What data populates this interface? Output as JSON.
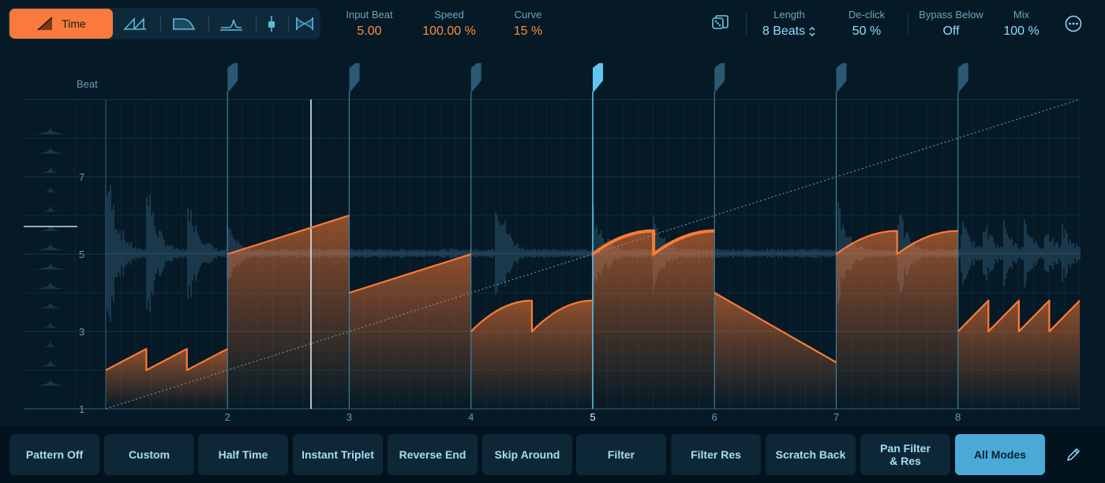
{
  "toolbar": {
    "modes": [
      {
        "id": "time",
        "label": "Time",
        "icon": "time-ramp-icon",
        "active": true
      },
      {
        "id": "repeat",
        "icon": "double-ramp-icon"
      },
      {
        "id": "fade",
        "icon": "fade-curve-icon"
      },
      {
        "id": "filter",
        "icon": "filter-peak-icon"
      },
      {
        "id": "level",
        "icon": "fader-icon"
      },
      {
        "id": "pan",
        "icon": "pan-bowtie-icon"
      }
    ]
  },
  "params": {
    "input_beat": {
      "label": "Input Beat",
      "value": "5.00"
    },
    "speed": {
      "label": "Speed",
      "value": "100.00 %"
    },
    "curve": {
      "label": "Curve",
      "value": "15 %"
    },
    "length": {
      "label": "Length",
      "value": "8 Beats"
    },
    "declick": {
      "label": "De-click",
      "value": "50 %"
    },
    "bypass_below": {
      "label": "Bypass Below",
      "value": "Off"
    },
    "mix": {
      "label": "Mix",
      "value": "100 %"
    }
  },
  "icons": {
    "randomize": "dice-icon",
    "more": "ellipsis-circle-icon",
    "length_stepper": "up-down-chevron-icon",
    "edit": "pencil-icon"
  },
  "graph": {
    "y_axis_title": "Beat",
    "y_ticks": [
      "1",
      "3",
      "5",
      "7"
    ],
    "x_ticks": [
      "2",
      "3",
      "4",
      "5",
      "6",
      "7",
      "8"
    ],
    "selected_beat": "5",
    "colors": {
      "accent": "#ff7a33",
      "marker": "#5fc7f2",
      "background": "#051a26"
    }
  },
  "presets": [
    {
      "label": "Pattern Off"
    },
    {
      "label": "Custom"
    },
    {
      "label": "Half Time"
    },
    {
      "label": "Instant Triplet"
    },
    {
      "label": "Reverse End"
    },
    {
      "label": "Skip Around"
    },
    {
      "label": "Filter"
    },
    {
      "label": "Filter Res"
    },
    {
      "label": "Scratch Back"
    },
    {
      "label": "Pan Filter\n& Res"
    },
    {
      "label": "All Modes",
      "active": true
    }
  ]
}
